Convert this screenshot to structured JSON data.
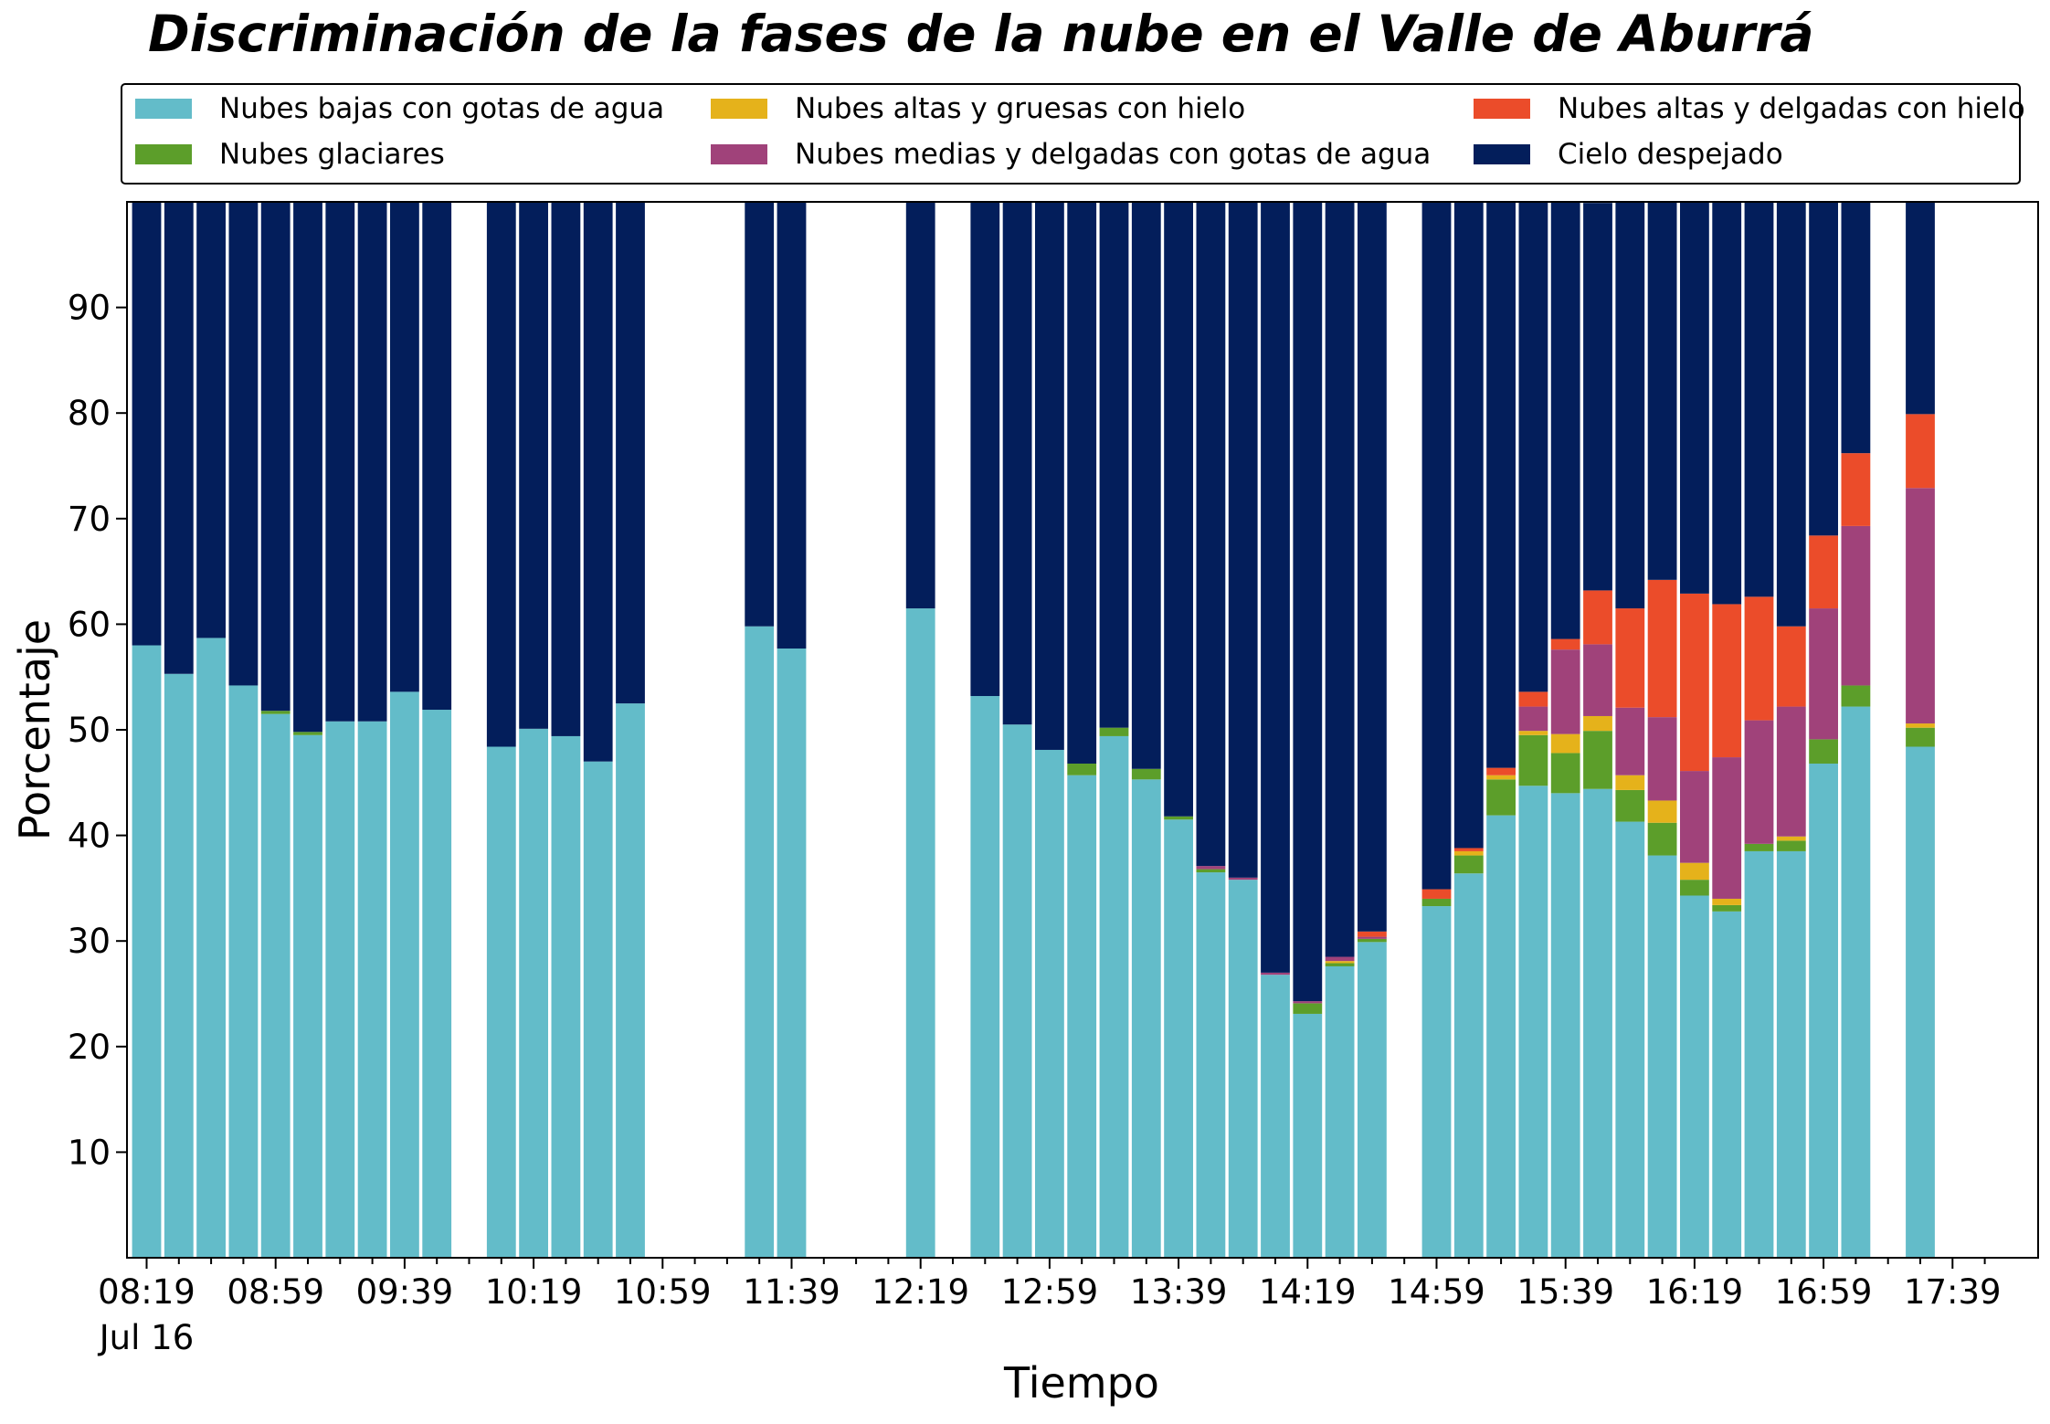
{
  "chart_data": {
    "type": "bar",
    "stacked": true,
    "title": "Discriminación de la fases de la nube en el Valle de Aburrá",
    "xlabel": "Tiempo",
    "ylabel": "Porcentaje",
    "ylim": [
      0,
      100
    ],
    "yticks": [
      10,
      20,
      30,
      40,
      50,
      60,
      70,
      80,
      90
    ],
    "grid": false,
    "legend_position": "top",
    "x_major_ticks": [
      "08:19",
      "08:59",
      "09:39",
      "10:19",
      "10:59",
      "11:39",
      "12:19",
      "12:59",
      "13:39",
      "14:19",
      "14:59",
      "15:39",
      "16:19",
      "16:59",
      "17:39"
    ],
    "x_date_label": "Jul 16",
    "x_start_minutes": 499,
    "interval_minutes": 10,
    "categories": [
      "08:19",
      "08:29",
      "08:39",
      "08:49",
      "08:59",
      "09:09",
      "09:19",
      "09:29",
      "09:39",
      "09:49",
      "09:59",
      "10:09",
      "10:19",
      "10:29",
      "10:39",
      "10:49",
      "10:59",
      "11:09",
      "11:19",
      "11:29",
      "11:39",
      "11:49",
      "11:59",
      "12:09",
      "12:19",
      "12:29",
      "12:39",
      "12:49",
      "12:59",
      "13:09",
      "13:19",
      "13:29",
      "13:39",
      "13:49",
      "13:59",
      "14:09",
      "14:19",
      "14:29",
      "14:39",
      "14:49",
      "14:59",
      "15:09",
      "15:19",
      "15:29",
      "15:39",
      "15:49",
      "15:59",
      "16:09",
      "16:19",
      "16:29",
      "16:39",
      "16:49",
      "16:59",
      "17:09",
      "17:19",
      "17:29",
      "17:39",
      "17:49"
    ],
    "series": [
      {
        "name": "Nubes bajas con gotas de agua",
        "color": "#63bcc9",
        "values": [
          58,
          55.3,
          58.7,
          54.2,
          51.5,
          49.5,
          50.8,
          50.8,
          53.6,
          51.9,
          null,
          48.4,
          50.1,
          49.4,
          47,
          52.5,
          null,
          null,
          null,
          59.8,
          57.7,
          null,
          null,
          null,
          61.5,
          null,
          53.2,
          50.5,
          48.1,
          45.7,
          49.4,
          45.3,
          41.5,
          36.5,
          35.8,
          26.8,
          23.1,
          27.6,
          29.9,
          null,
          33.3,
          36.4,
          41.9,
          44.7,
          44,
          44.4,
          41.3,
          38.1,
          34.3,
          32.8,
          38.5,
          38.5,
          46.8,
          52.2,
          null,
          48.4,
          null,
          null
        ]
      },
      {
        "name": "Nubes glaciares",
        "color": "#5c9e2a",
        "values": [
          0,
          0,
          0,
          0,
          0.3,
          0.3,
          0,
          0,
          0,
          0,
          null,
          0,
          0,
          0,
          0,
          0,
          null,
          null,
          null,
          0,
          0,
          null,
          null,
          null,
          0,
          null,
          0,
          0,
          0,
          1.1,
          0.8,
          1,
          0.3,
          0.3,
          0,
          0,
          1,
          0.3,
          0.3,
          null,
          0.7,
          1.7,
          3.4,
          4.8,
          3.8,
          5.5,
          3,
          3.1,
          1.5,
          0.6,
          0.7,
          1,
          2.3,
          2,
          null,
          1.8,
          null,
          null
        ]
      },
      {
        "name": "Nubes altas y gruesas con hielo",
        "color": "#e5b21b",
        "values": [
          0,
          0,
          0,
          0,
          0,
          0,
          0,
          0,
          0,
          0,
          null,
          0,
          0,
          0,
          0,
          0,
          null,
          null,
          null,
          0,
          0,
          null,
          null,
          null,
          0,
          null,
          0,
          0,
          0,
          0,
          0,
          0,
          0,
          0,
          0,
          0,
          0,
          0.2,
          0,
          null,
          0,
          0.4,
          0.4,
          0.4,
          1.8,
          1.4,
          1.4,
          2.1,
          1.6,
          0.6,
          0,
          0.4,
          0,
          0,
          null,
          0.4,
          null,
          null
        ]
      },
      {
        "name": "Nubes medias y delgadas con gotas de agua",
        "color": "#a0427a",
        "values": [
          0,
          0,
          0,
          0,
          0,
          0,
          0,
          0,
          0,
          0,
          null,
          0,
          0,
          0,
          0,
          0,
          null,
          null,
          null,
          0,
          0,
          null,
          null,
          null,
          0,
          null,
          0,
          0,
          0,
          0,
          0,
          0,
          0,
          0.3,
          0.2,
          0.2,
          0.2,
          0.4,
          0.2,
          null,
          0,
          0,
          0,
          2.3,
          8,
          6.8,
          6.4,
          7.9,
          8.7,
          13.4,
          11.7,
          12.3,
          12.4,
          15.1,
          null,
          22.3,
          null,
          null
        ]
      },
      {
        "name": "Nubes altas y delgadas con hielo",
        "color": "#eb4c2a",
        "values": [
          0,
          0,
          0,
          0,
          0,
          0,
          0,
          0,
          0,
          0,
          null,
          0,
          0,
          0,
          0,
          0,
          null,
          null,
          null,
          0,
          0,
          null,
          null,
          null,
          0,
          null,
          0,
          0,
          0,
          0,
          0,
          0,
          0,
          0,
          0,
          0,
          0,
          0,
          0.5,
          null,
          0.9,
          0.3,
          0.7,
          1.4,
          1,
          5.1,
          9.4,
          13,
          16.8,
          14.5,
          11.7,
          7.6,
          6.9,
          6.9,
          null,
          7,
          null,
          null
        ]
      },
      {
        "name": "Cielo despejado",
        "color": "#031e5b",
        "values": [
          42,
          44.7,
          41.3,
          45.8,
          48.2,
          50.2,
          49.2,
          49.2,
          46.4,
          48.1,
          null,
          51.6,
          49.9,
          50.6,
          53,
          47.5,
          null,
          null,
          null,
          40.2,
          42.3,
          null,
          null,
          null,
          38.5,
          null,
          46.8,
          49.5,
          51.9,
          53.2,
          49.8,
          53.7,
          58.2,
          62.9,
          64,
          73,
          75.7,
          71.5,
          69.1,
          null,
          65.1,
          61.2,
          53.6,
          46.4,
          41.4,
          36.7,
          38.5,
          35.8,
          37.1,
          38.1,
          37.4,
          40.2,
          31.6,
          23.8,
          null,
          20.1,
          null,
          null
        ]
      }
    ]
  }
}
